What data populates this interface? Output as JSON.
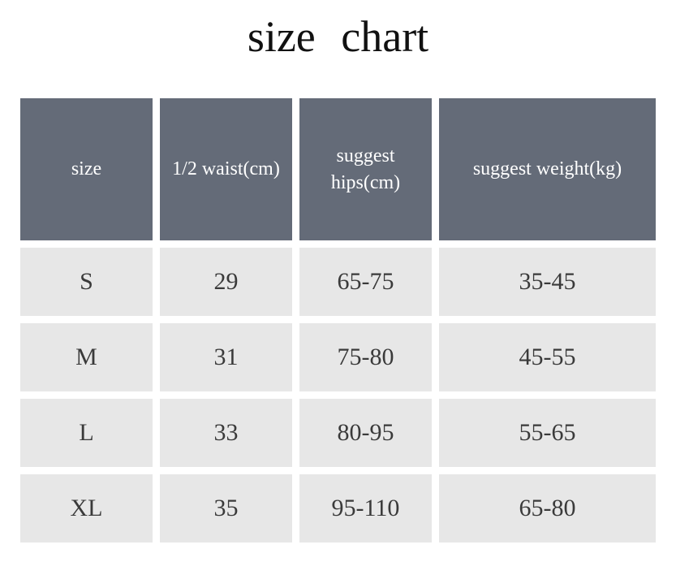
{
  "title": "size  chart",
  "colors": {
    "header_bg": "#646b78",
    "cell_bg": "#e7e7e7"
  },
  "headers": [
    "size",
    "1/2 waist(cm)",
    "suggest hips(cm)",
    "suggest  weight(kg)"
  ],
  "rows": [
    [
      "S",
      "29",
      "65-75",
      "35-45"
    ],
    [
      "M",
      "31",
      "75-80",
      "45-55"
    ],
    [
      "L",
      "33",
      "80-95",
      "55-65"
    ],
    [
      "XL",
      "35",
      "95-110",
      "65-80"
    ]
  ]
}
